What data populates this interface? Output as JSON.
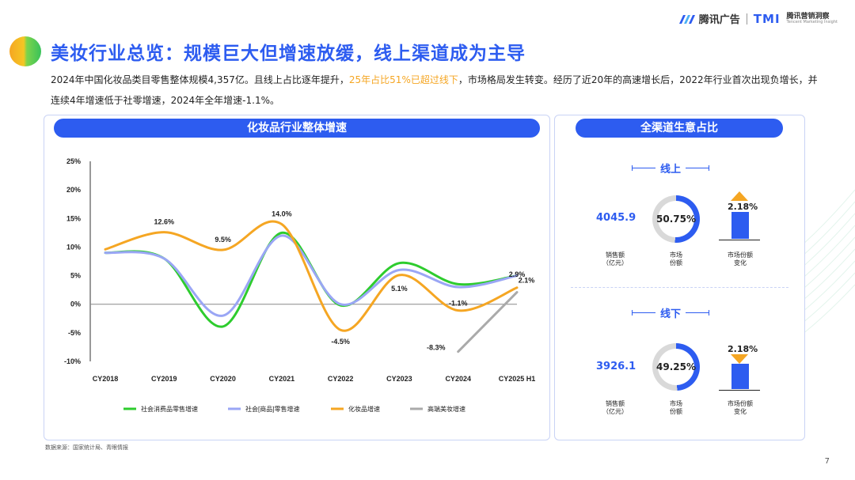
{
  "header": {
    "brand_ad": "腾讯广告",
    "brand_tmi": "TMI",
    "brand_tmi_cn": "腾讯营销洞察",
    "brand_tmi_en": "Tencent Marketing Insight"
  },
  "title": "美妆行业总览：规模巨大但增速放缓，线上渠道成为主导",
  "intro": {
    "part1": "2024年中国化妆品类目零售整体规模4,357亿。且线上占比逐年提升，",
    "highlight": "25年占比51%已超过线下",
    "part2": "，市场格局发生转变。经历了近20年的高速增长后，2022年行业首次出现负增长，并连续4年增速低于社零增速，2024年全年增速-1.1%。"
  },
  "left_panel": {
    "title": "化妆品行业整体增速"
  },
  "right_panel": {
    "title": "全渠道生意占比",
    "online": {
      "label": "线上",
      "sales": "4045.9",
      "share": "50.75%",
      "share_value": 50.75,
      "delta": "2.18%",
      "delta_direction": "up",
      "sales_label_1": "销售额",
      "sales_label_2": "（亿元）",
      "share_label_1": "市场",
      "share_label_2": "份额",
      "change_label_1": "市场份额",
      "change_label_2": "变化"
    },
    "offline": {
      "label": "线下",
      "sales": "3926.1",
      "share": "49.25%",
      "share_value": 49.25,
      "delta": "2.18%",
      "delta_direction": "down",
      "sales_label_1": "销售额",
      "sales_label_2": "（亿元）",
      "share_label_1": "市场",
      "share_label_2": "份额",
      "change_label_1": "市场份额",
      "change_label_2": "变化"
    }
  },
  "source": "数据来源：国家统计局、青眼情报",
  "page_number": "7",
  "colors": {
    "brand_blue": "#2d5cf0",
    "highlight_orange": "#f5a623",
    "green": "#2ecc2e",
    "lavender": "#9aa6f5",
    "orange": "#f5a623",
    "gray": "#aaaaaa"
  },
  "chart_data": {
    "type": "line",
    "categories": [
      "CY2018",
      "CY2019",
      "CY2020",
      "CY2021",
      "CY2022",
      "CY2023",
      "CY2024",
      "CY2025 H1"
    ],
    "ylim": [
      -10,
      25
    ],
    "yticks": [
      "25%",
      "20%",
      "15%",
      "10%",
      "5%",
      "0%",
      "-5%",
      "-10%"
    ],
    "ytick_values": [
      25,
      20,
      15,
      10,
      5,
      0,
      -5,
      -10
    ],
    "legend_position": "bottom",
    "grid": false,
    "series": [
      {
        "name": "社会消费品零售增速",
        "color": "#2ecc2e",
        "smooth": true,
        "x": [
          0,
          1,
          2,
          3,
          4,
          5,
          6,
          7
        ],
        "values": [
          9.0,
          8.0,
          -3.9,
          12.5,
          -0.2,
          7.2,
          3.5,
          5.0
        ]
      },
      {
        "name": "社会[商品]零售增速",
        "color": "#9aa6f5",
        "smooth": true,
        "x": [
          0,
          1,
          2,
          3,
          4,
          5,
          6,
          7
        ],
        "values": [
          9.0,
          8.0,
          -2.0,
          12.0,
          0.0,
          6.0,
          3.0,
          5.0
        ]
      },
      {
        "name": "化妆品增速",
        "color": "#f5a623",
        "smooth": true,
        "x": [
          0,
          1,
          2,
          3,
          4,
          5,
          6,
          7
        ],
        "values": [
          9.6,
          12.6,
          9.5,
          14.0,
          -4.5,
          5.1,
          -1.1,
          2.9
        ],
        "data_labels": [
          "",
          "12.6%",
          "9.5%",
          "14.0%",
          "-4.5%",
          "5.1%",
          "-1.1%",
          "2.9%"
        ]
      },
      {
        "name": "高端美妆增速",
        "color": "#aaaaaa",
        "smooth": false,
        "x": [
          6,
          7
        ],
        "values": [
          -8.3,
          2.1
        ],
        "data_labels": [
          "-8.3%",
          "2.1%"
        ]
      }
    ]
  }
}
